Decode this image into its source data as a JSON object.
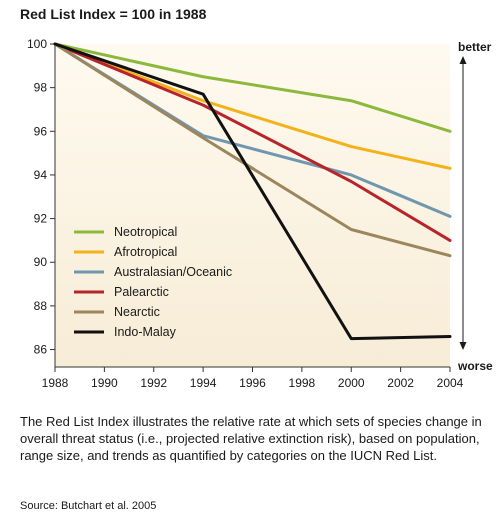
{
  "chart_data": {
    "type": "line",
    "title": "Red List Index = 100 in 1988",
    "xlabel": "",
    "ylabel": "",
    "x": [
      1988,
      1994,
      2000,
      2004
    ],
    "xticks": [
      1988,
      1990,
      1992,
      1994,
      1996,
      1998,
      2000,
      2002,
      2004
    ],
    "yticks": [
      86,
      88,
      90,
      92,
      94,
      96,
      98,
      100
    ],
    "xlim": [
      1988,
      2004
    ],
    "ylim": [
      85.2,
      100
    ],
    "grid": false,
    "legend_position": "bottom-left",
    "annotations": {
      "top": "better",
      "bottom": "worse"
    },
    "series": [
      {
        "name": "Neotropical",
        "color": "#8cb83c",
        "values": [
          100,
          98.5,
          97.4,
          96.0
        ]
      },
      {
        "name": "Afrotropical",
        "color": "#f3b21a",
        "values": [
          100,
          97.4,
          95.3,
          94.3
        ]
      },
      {
        "name": "Australasian/Oceanic",
        "color": "#6f97b0",
        "values": [
          100,
          95.8,
          94.0,
          92.1
        ]
      },
      {
        "name": "Palearctic",
        "color": "#b7252b",
        "values": [
          100,
          97.2,
          93.7,
          91.0
        ]
      },
      {
        "name": "Nearctic",
        "color": "#9c865c",
        "values": [
          100,
          95.7,
          91.5,
          90.3
        ]
      },
      {
        "name": "Indo-Malay",
        "color": "#111111",
        "values": [
          100,
          97.7,
          86.5,
          86.6
        ]
      }
    ]
  },
  "caption": "The Red List Index illustrates the relative rate at which sets of species change in overall threat status (i.e., projected relative extinction risk), based on population, range size, and trends as quantified by categories on the IUCN Red List.",
  "source": "Source: Butchart et al. 2005"
}
